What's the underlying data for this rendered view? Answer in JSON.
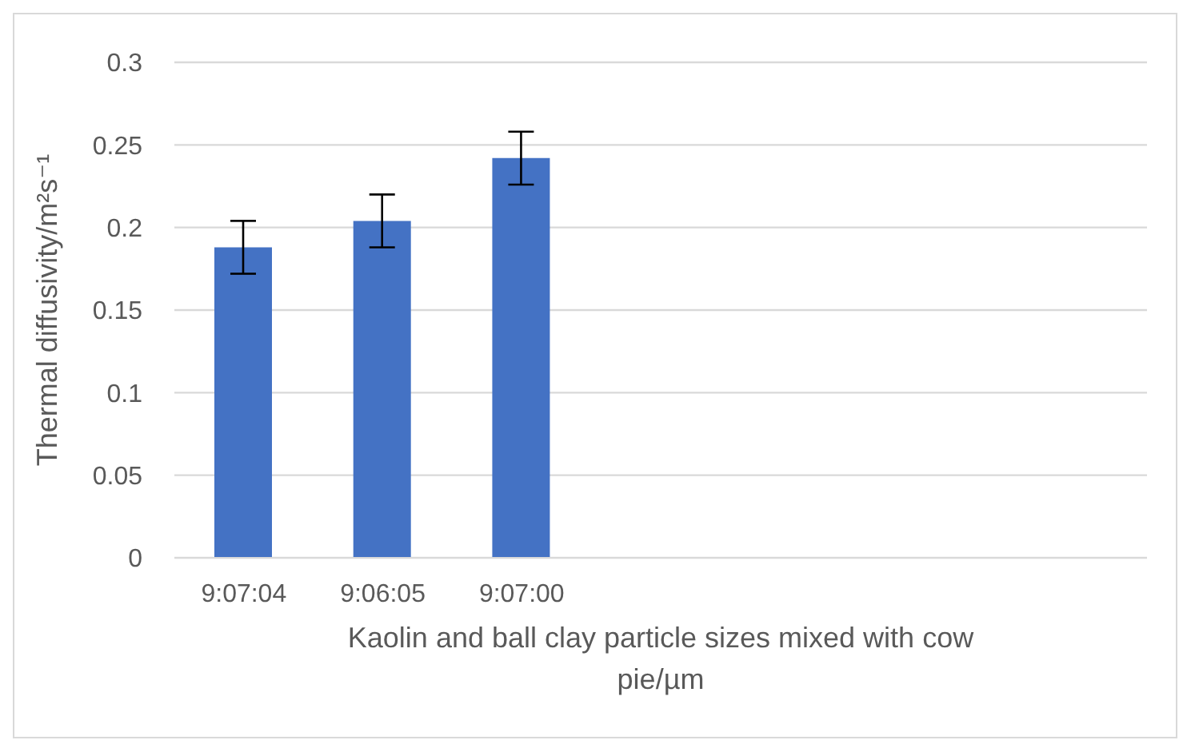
{
  "chart_data": {
    "type": "bar",
    "categories": [
      "9:07:04",
      "9:06:05",
      "9:07:00",
      null,
      null,
      null,
      null
    ],
    "values": [
      0.188,
      0.204,
      0.242,
      null,
      null,
      null,
      null
    ],
    "errors": [
      0.016,
      0.016,
      0.016,
      null,
      null,
      null,
      null
    ],
    "color": "#4472c4",
    "xlabel": "Kaolin and ball clay particle sizes mixed with cow pie/µm",
    "ylabel": "Thermal diffusivity/m²s⁻¹",
    "ylim": [
      0,
      0.3
    ],
    "yticks": [
      0,
      0.05,
      0.1,
      0.15,
      0.2,
      0.25,
      0.3
    ],
    "grid": "y"
  }
}
